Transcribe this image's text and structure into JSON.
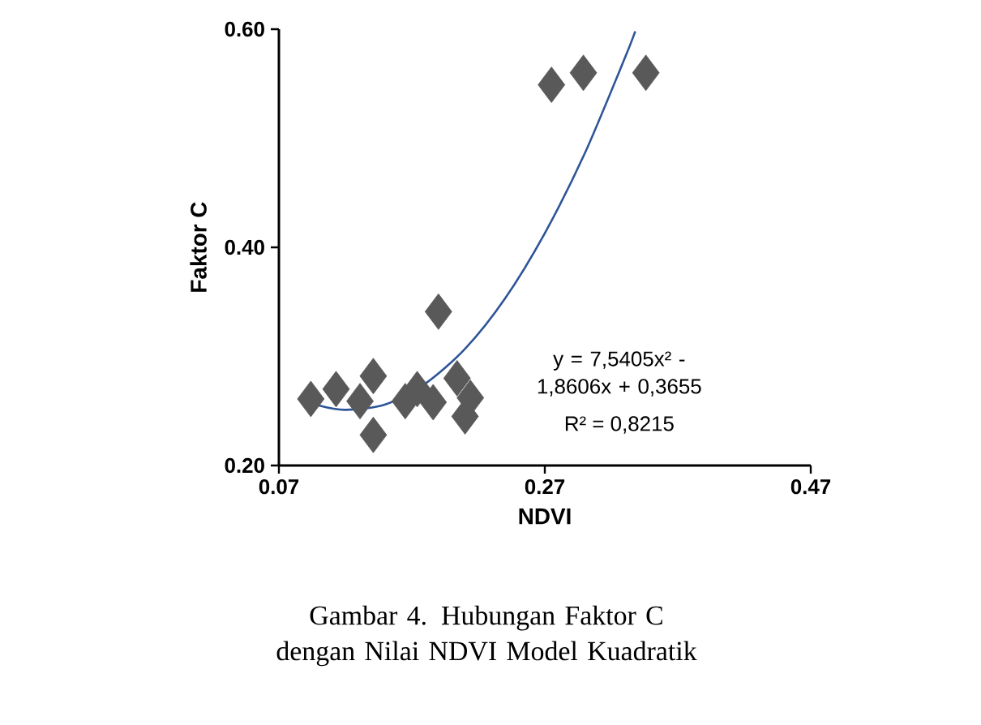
{
  "chart_data": {
    "type": "scatter",
    "xlabel": "NDVI",
    "ylabel": "Faktor C",
    "xlim": [
      0.07,
      0.47
    ],
    "xticks": [
      {
        "value": 0.07,
        "label": "0.07"
      },
      {
        "value": 0.27,
        "label": "0.27"
      },
      {
        "value": 0.47,
        "label": "0.47"
      }
    ],
    "ylim": [
      0.2,
      0.6
    ],
    "yticks": [
      {
        "value": 0.2,
        "label": "0.20"
      },
      {
        "value": 0.4,
        "label": "0.40"
      },
      {
        "value": 0.6,
        "label": "0.60"
      }
    ],
    "series": [
      {
        "marker": "diamond",
        "color": "#595959",
        "x": [
          0.094,
          0.113,
          0.141,
          0.141,
          0.131,
          0.174,
          0.19,
          0.204,
          0.21,
          0.186,
          0.165,
          0.214,
          0.275,
          0.299,
          0.346
        ],
        "values": [
          0.261,
          0.27,
          0.282,
          0.228,
          0.259,
          0.27,
          0.341,
          0.28,
          0.245,
          0.258,
          0.259,
          0.262,
          0.549,
          0.56,
          0.56
        ]
      },
      {
        "type": "line",
        "color": "#2e5597",
        "x": [
          0.1,
          0.12,
          0.15,
          0.18,
          0.21,
          0.24,
          0.27,
          0.3,
          0.33,
          0.338
        ],
        "values": [
          0.255,
          0.251,
          0.256,
          0.275,
          0.307,
          0.353,
          0.413,
          0.486,
          0.573,
          0.598
        ]
      }
    ],
    "annotations": [
      "y = 7,5405x² - 1,8606x + 0,3655",
      "R² = 0,8215",
      "Gambar 4. Hubungan Faktor C dengan Nilai NDVI Model Kuadratik"
    ]
  }
}
